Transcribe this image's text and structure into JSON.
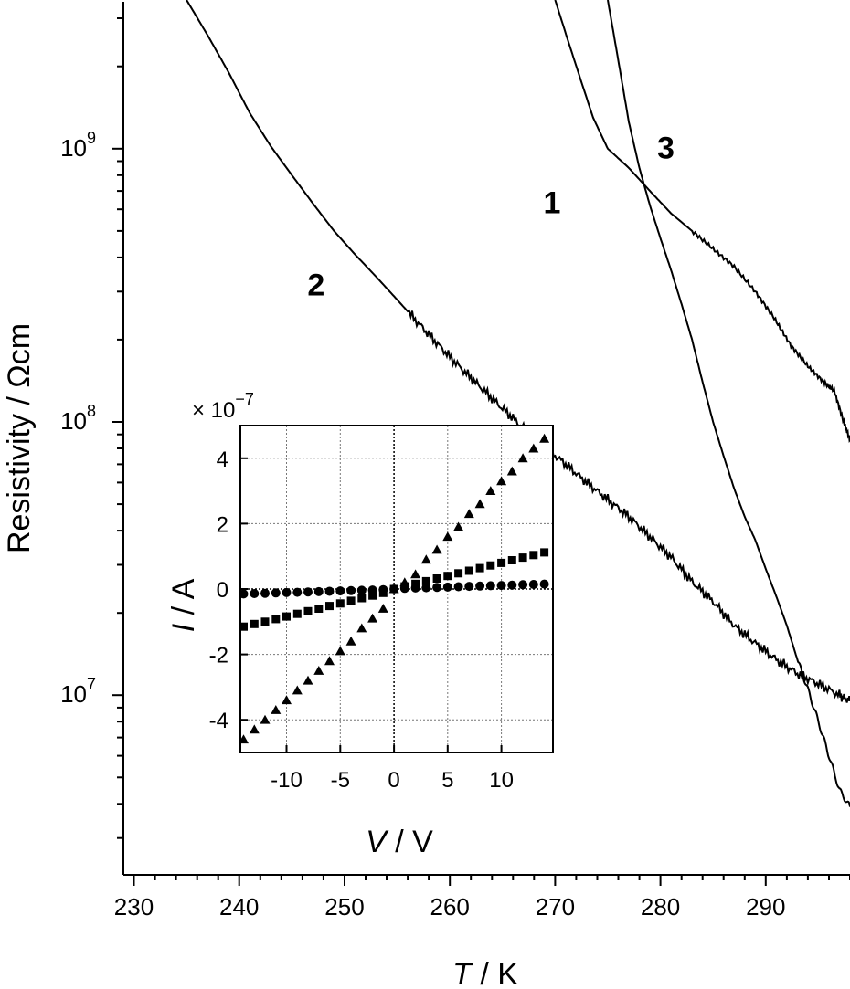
{
  "chart_data": [
    {
      "type": "line",
      "xlabel_var": "T",
      "xlabel_unit": " / K",
      "ylabel": "Resistivity / Ωcm",
      "xlim": [
        229,
        298
      ],
      "ylim": [
        2200000,
        3500000000
      ],
      "yscale": "log",
      "x_ticks": [
        230,
        240,
        250,
        260,
        270,
        280,
        290
      ],
      "x_tick_labels": [
        "230",
        "240",
        "250",
        "260",
        "270",
        "280",
        "290"
      ],
      "y_major_ticks": [
        10000000,
        100000000,
        1000000000
      ],
      "y_major_labels": [
        {
          "base": "10",
          "exp": "7"
        },
        {
          "base": "10",
          "exp": "8"
        },
        {
          "base": "10",
          "exp": "9"
        }
      ],
      "series": [
        {
          "name": "1",
          "x": [
            270.0,
            271.2,
            272.4,
            273.6,
            275.0,
            277.0,
            279.0,
            281.0,
            283.0,
            285.0,
            287.0,
            289.0,
            290.8,
            292.4,
            294.0,
            295.5,
            296.5,
            297.4,
            298.0
          ],
          "y": [
            3500000000,
            2500000000,
            1800000000,
            1300000000,
            1000000000,
            850000000,
            700000000,
            580000000,
            500000000,
            430000000,
            370000000,
            300000000,
            240000000,
            190000000,
            160000000,
            140000000,
            130000000,
            100000000,
            86000000
          ]
        },
        {
          "name": "2",
          "x": [
            235.0,
            237.0,
            239.0,
            241.0,
            243.0,
            245.0,
            247.0,
            249.0,
            251.0,
            253.0,
            255.0,
            257.0,
            259.0,
            261.0,
            263.0,
            265.0,
            267.0,
            269.0,
            271.0,
            273.0,
            275.0,
            277.0,
            279.0,
            281.0,
            283.0,
            285.0,
            287.0,
            289.0,
            291.0,
            293.0,
            295.0,
            297.0,
            298.0
          ],
          "y": [
            3500000000,
            2600000000,
            1900000000,
            1350000000,
            1020000000,
            800000000,
            630000000,
            500000000,
            410000000,
            340000000,
            280000000,
            230000000,
            190000000,
            158000000,
            133000000,
            112000000,
            95000000,
            81000000,
            70000000,
            60000000,
            52000000,
            45000000,
            38000000,
            32000000,
            26000000,
            22000000,
            18000000,
            15500000,
            13500000,
            12000000,
            11000000,
            10000000,
            9500000
          ]
        },
        {
          "name": "3",
          "x": [
            275.0,
            276.0,
            277.0,
            278.0,
            279.0,
            280.0,
            281.0,
            282.0,
            283.0,
            284.0,
            285.0,
            286.0,
            287.0,
            288.0,
            289.0,
            290.0,
            291.0,
            292.0,
            293.0,
            294.0,
            295.0,
            296.0,
            297.0,
            298.0
          ],
          "y": [
            3500000000,
            2100000000,
            1250000000,
            850000000,
            620000000,
            470000000,
            360000000,
            270000000,
            200000000,
            140000000,
            100000000,
            75000000,
            57000000,
            45000000,
            37000000,
            29000000,
            23000000,
            18000000,
            13500000,
            10500000,
            8000000,
            6000000,
            4500000,
            3900000
          ]
        }
      ],
      "curve_labels": [
        {
          "text": "1",
          "x": 269.7,
          "y": 580000000
        },
        {
          "text": "2",
          "x": 247.3,
          "y": 290000000
        },
        {
          "text": "3",
          "x": 280.5,
          "y": 920000000
        }
      ]
    },
    {
      "type": "scatter",
      "inset": true,
      "xlabel_var": "V",
      "xlabel_unit": " / V",
      "ylabel_var": "I",
      "ylabel_unit": " / A",
      "multiplier": {
        "base": "× 10",
        "exp": "−7"
      },
      "xlim": [
        -14.3,
        14.8
      ],
      "ylim": [
        -5.0,
        5.0
      ],
      "x_ticks": [
        -10,
        -5,
        0,
        5,
        10
      ],
      "x_tick_labels": [
        "-10",
        "-5",
        "0",
        "5",
        "10"
      ],
      "y_ticks": [
        -4,
        -2,
        0,
        2,
        4
      ],
      "y_tick_labels": [
        "-4",
        "-2",
        "0",
        "2",
        "4"
      ],
      "grid": true,
      "series": [
        {
          "marker": "triangle",
          "x": [
            -14,
            -13,
            -12,
            -11,
            -10,
            -9,
            -8,
            -7,
            -6,
            -5,
            -4,
            -3,
            -2,
            -1,
            0,
            1,
            2,
            3,
            4,
            5,
            6,
            7,
            8,
            9,
            10,
            11,
            12,
            13,
            14
          ],
          "y": [
            -4.6,
            -4.3,
            -4.0,
            -3.7,
            -3.4,
            -3.1,
            -2.8,
            -2.5,
            -2.2,
            -1.9,
            -1.6,
            -1.2,
            -0.9,
            -0.6,
            0.0,
            0.2,
            0.45,
            0.9,
            1.2,
            1.6,
            1.9,
            2.3,
            2.6,
            3.0,
            3.3,
            3.6,
            4.0,
            4.3,
            4.6
          ]
        },
        {
          "marker": "square",
          "x": [
            -14,
            -13,
            -12,
            -11,
            -10,
            -9,
            -8,
            -7,
            -6,
            -5,
            -4,
            -3,
            -2,
            -1,
            0,
            1,
            2,
            3,
            4,
            5,
            6,
            7,
            8,
            9,
            10,
            11,
            12,
            13,
            14
          ],
          "y": [
            -1.15,
            -1.07,
            -1.0,
            -0.92,
            -0.84,
            -0.76,
            -0.68,
            -0.6,
            -0.52,
            -0.44,
            -0.36,
            -0.28,
            -0.2,
            -0.12,
            0.0,
            0.08,
            0.16,
            0.24,
            0.32,
            0.4,
            0.48,
            0.56,
            0.64,
            0.72,
            0.8,
            0.88,
            0.96,
            1.04,
            1.12
          ]
        },
        {
          "marker": "circle",
          "x": [
            -14,
            -13,
            -12,
            -11,
            -10,
            -9,
            -8,
            -7,
            -6,
            -5,
            -4,
            -3,
            -2,
            -1,
            0,
            1,
            2,
            3,
            4,
            5,
            6,
            7,
            8,
            9,
            10,
            11,
            12,
            13,
            14
          ],
          "y": [
            -0.15,
            -0.14,
            -0.13,
            -0.12,
            -0.11,
            -0.1,
            -0.09,
            -0.08,
            -0.07,
            -0.06,
            -0.05,
            -0.04,
            -0.03,
            -0.02,
            0.0,
            0.02,
            0.03,
            0.04,
            0.05,
            0.06,
            0.07,
            0.08,
            0.09,
            0.1,
            0.11,
            0.12,
            0.13,
            0.14,
            0.15
          ]
        }
      ]
    }
  ]
}
